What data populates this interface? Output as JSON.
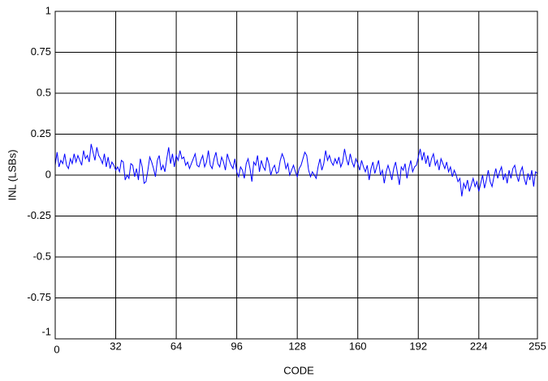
{
  "chart_data": {
    "type": "line",
    "xlabel": "CODE",
    "ylabel": "INL (LSBs)",
    "x": [
      0,
      1,
      2,
      3,
      4,
      5,
      6,
      7,
      8,
      9,
      10,
      11,
      12,
      13,
      14,
      15,
      16,
      17,
      18,
      19,
      20,
      21,
      22,
      23,
      24,
      25,
      26,
      27,
      28,
      29,
      30,
      31,
      32,
      33,
      34,
      35,
      36,
      37,
      38,
      39,
      40,
      41,
      42,
      43,
      44,
      45,
      46,
      47,
      48,
      49,
      50,
      51,
      52,
      53,
      54,
      55,
      56,
      57,
      58,
      59,
      60,
      61,
      62,
      63,
      64,
      65,
      66,
      67,
      68,
      69,
      70,
      71,
      72,
      73,
      74,
      75,
      76,
      77,
      78,
      79,
      80,
      81,
      82,
      83,
      84,
      85,
      86,
      87,
      88,
      89,
      90,
      91,
      92,
      93,
      94,
      95,
      96,
      97,
      98,
      99,
      100,
      101,
      102,
      103,
      104,
      105,
      106,
      107,
      108,
      109,
      110,
      111,
      112,
      113,
      114,
      115,
      116,
      117,
      118,
      119,
      120,
      121,
      122,
      123,
      124,
      125,
      126,
      127,
      128,
      129,
      130,
      131,
      132,
      133,
      134,
      135,
      136,
      137,
      138,
      139,
      140,
      141,
      142,
      143,
      144,
      145,
      146,
      147,
      148,
      149,
      150,
      151,
      152,
      153,
      154,
      155,
      156,
      157,
      158,
      159,
      160,
      161,
      162,
      163,
      164,
      165,
      166,
      167,
      168,
      169,
      170,
      171,
      172,
      173,
      174,
      175,
      176,
      177,
      178,
      179,
      180,
      181,
      182,
      183,
      184,
      185,
      186,
      187,
      188,
      189,
      190,
      191,
      192,
      193,
      194,
      195,
      196,
      197,
      198,
      199,
      200,
      201,
      202,
      203,
      204,
      205,
      206,
      207,
      208,
      209,
      210,
      211,
      212,
      213,
      214,
      215,
      216,
      217,
      218,
      219,
      220,
      221,
      222,
      223,
      224,
      225,
      226,
      227,
      228,
      229,
      230,
      231,
      232,
      233,
      234,
      235,
      236,
      237,
      238,
      239,
      240,
      241,
      242,
      243,
      244,
      245,
      246,
      247,
      248,
      249,
      250,
      251,
      252,
      253,
      254,
      255
    ],
    "series": [
      {
        "color": "#0000ff",
        "values": [
          0.06,
          0.14,
          0.05,
          0.09,
          0.07,
          0.13,
          0.06,
          0.04,
          0.1,
          0.07,
          0.13,
          0.08,
          0.12,
          0.09,
          0.06,
          0.15,
          0.1,
          0.12,
          0.08,
          0.19,
          0.14,
          0.09,
          0.17,
          0.12,
          0.1,
          0.07,
          0.13,
          0.05,
          0.11,
          0.04,
          0.08,
          0.06,
          0.03,
          0.05,
          0.02,
          0.09,
          0.08,
          -0.03,
          0.0,
          -0.02,
          0.07,
          0.06,
          -0.01,
          0.04,
          -0.03,
          0.1,
          0.05,
          -0.05,
          -0.04,
          0.03,
          0.11,
          0.08,
          0.04,
          -0.01,
          0.09,
          0.12,
          0.03,
          0.06,
          0.02,
          0.1,
          0.17,
          0.07,
          0.13,
          0.05,
          0.12,
          0.09,
          0.15,
          0.1,
          0.11,
          0.06,
          0.08,
          0.04,
          0.07,
          0.1,
          0.13,
          0.06,
          0.05,
          0.09,
          0.12,
          0.05,
          0.08,
          0.15,
          0.06,
          0.04,
          0.1,
          0.14,
          0.07,
          0.05,
          0.11,
          0.08,
          0.03,
          0.13,
          0.09,
          0.06,
          0.04,
          0.1,
          0.02,
          -0.01,
          0.05,
          0.03,
          -0.02,
          0.07,
          0.1,
          0.04,
          -0.04,
          0.08,
          0.06,
          0.12,
          0.02,
          0.09,
          0.05,
          0.03,
          0.11,
          0.07,
          0.0,
          0.04,
          0.06,
          0.01,
          0.02,
          0.09,
          0.13,
          0.1,
          0.04,
          0.07,
          0.0,
          0.03,
          0.06,
          0.02,
          -0.01,
          0.04,
          0.06,
          0.1,
          0.14,
          0.12,
          0.03,
          -0.01,
          0.02,
          0.0,
          -0.02,
          0.05,
          0.1,
          0.03,
          0.07,
          0.15,
          0.09,
          0.12,
          0.08,
          0.06,
          0.1,
          0.07,
          0.11,
          0.05,
          0.08,
          0.16,
          0.1,
          0.06,
          0.13,
          0.08,
          0.05,
          0.1,
          0.07,
          0.03,
          0.09,
          0.05,
          0.02,
          0.06,
          -0.03,
          0.04,
          0.08,
          0.01,
          0.05,
          0.09,
          0.0,
          0.03,
          -0.05,
          0.02,
          0.06,
          0.02,
          -0.03,
          0.04,
          0.08,
          0.01,
          -0.06,
          0.05,
          0.03,
          0.07,
          -0.02,
          0.04,
          0.09,
          0.02,
          0.05,
          0.06,
          0.11,
          0.16,
          0.09,
          0.14,
          0.07,
          0.12,
          0.05,
          0.1,
          0.13,
          0.06,
          0.09,
          0.03,
          0.1,
          0.07,
          0.04,
          0.08,
          0.02,
          0.05,
          -0.01,
          0.03,
          0.0,
          -0.04,
          -0.02,
          -0.13,
          -0.05,
          -0.08,
          -0.03,
          -0.1,
          -0.06,
          -0.02,
          -0.07,
          -0.04,
          -0.1,
          -0.05,
          0.0,
          -0.08,
          -0.03,
          0.03,
          -0.04,
          -0.07,
          -0.01,
          0.04,
          -0.02,
          0.02,
          0.05,
          -0.03,
          0.01,
          -0.05,
          0.03,
          -0.02,
          0.04,
          0.06,
          0.0,
          -0.04,
          0.02,
          0.05,
          -0.02,
          -0.06,
          0.01,
          -0.03,
          0.03,
          -0.07,
          0.02,
          0.01
        ]
      }
    ],
    "xlim": [
      0,
      255
    ],
    "xticks": [
      0,
      32,
      64,
      96,
      128,
      160,
      192,
      224,
      255
    ],
    "ylim": [
      -1,
      1
    ],
    "yticks": [
      -1,
      -0.75,
      -0.5,
      -0.25,
      0,
      0.25,
      0.5,
      0.75,
      1
    ],
    "grid": true
  }
}
